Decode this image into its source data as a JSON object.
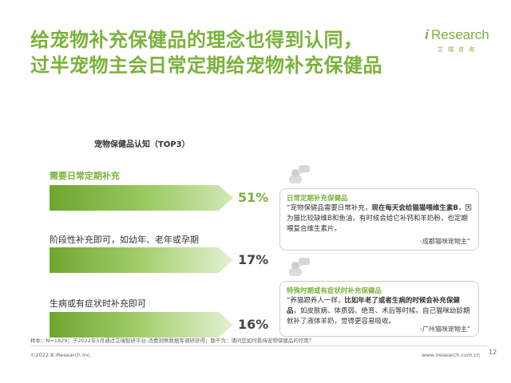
{
  "title": {
    "line1": "给宠物补充保健品的理念也得到认同，",
    "line2": "过半宠物主会日常定期给宠物补充保健品"
  },
  "logo": {
    "brand_i": "i",
    "brand_rest": "Research",
    "sub": "艾瑞咨询"
  },
  "chart_title": "宠物保健品认知（TOP3）",
  "chart_data": {
    "type": "bar",
    "title": "宠物保健品认知（TOP3）",
    "categories": [
      "需要日常定期补充",
      "阶段性补充即可，如幼年、老年或孕期",
      "生病或有症状时补充即可"
    ],
    "values": [
      51,
      17,
      16
    ],
    "value_labels": [
      "51%",
      "17%",
      "16%"
    ],
    "ylim": [
      0,
      51
    ]
  },
  "quotes": [
    {
      "title": "日常定期补充保健品",
      "pre": "“宠物保健品需要日常补充，",
      "bold": "现在每天会给猫猫喂维生素B",
      "post": "，因为猫比较缺维B和鱼油，有时候会给它补钙和羊奶粉，也定期喂复合维生素片。",
      "source": "-成都猫咪宠物主”"
    },
    {
      "title": "特殊时期或有症状时补充保健品",
      "pre": "“养猫跟养人一样，",
      "bold": "比如年老了或者生病的时候会补充保健品",
      "post": "，如皮肤病、体质弱、绝育、术后等时候。自己猫咪幼龄期就补了液体羊奶，觉得更容易吸收。",
      "source": "-广州猫咪宠物主”"
    }
  ],
  "footnote": "样本：N=1829；于2022年5月通过艾瑞智研平台-消费洞察数据库调研获得；题干为：请问您如何看待宠物保健品的作用？",
  "copyright": "©2022.8 iResearch Inc.",
  "website": "www.iresearch.com.cn",
  "page_number": "12",
  "colors": {
    "accent": "#7ab23a"
  }
}
